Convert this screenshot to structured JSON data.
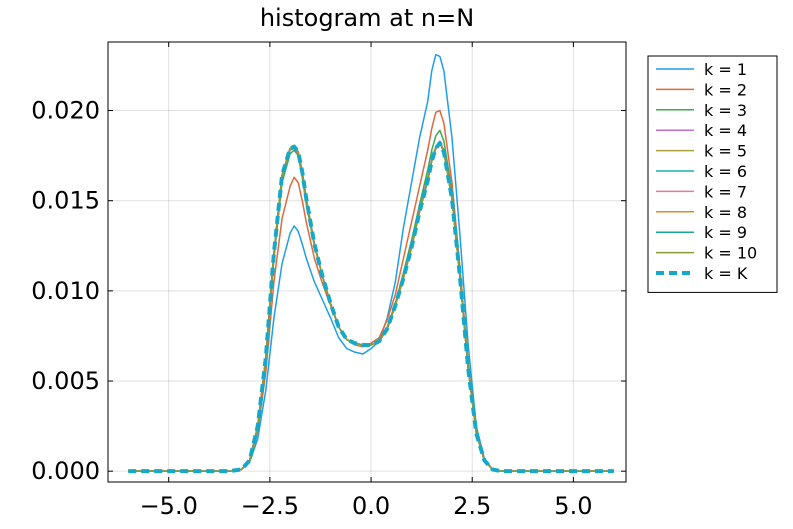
{
  "chart_data": {
    "type": "line",
    "title": "histogram at n=N",
    "xlabel": "",
    "ylabel": "",
    "xlim": [
      -6.5,
      6.3
    ],
    "ylim": [
      -0.0006,
      0.0238
    ],
    "grid": true,
    "legend_position": "outside-right-top",
    "x_ticks": [
      -5.0,
      -2.5,
      0.0,
      2.5,
      5.0
    ],
    "x_tick_labels": [
      "−5.0",
      "−2.5",
      "0.0",
      "2.5",
      "5.0"
    ],
    "y_ticks": [
      0.0,
      0.005,
      0.01,
      0.015,
      0.02
    ],
    "y_tick_labels": [
      "0.000",
      "0.005",
      "0.010",
      "0.015",
      "0.020"
    ],
    "x": [
      -6.0,
      -5.5,
      -5.0,
      -4.5,
      -4.0,
      -3.5,
      -3.2,
      -3.0,
      -2.8,
      -2.6,
      -2.4,
      -2.2,
      -2.0,
      -1.9,
      -1.8,
      -1.7,
      -1.6,
      -1.4,
      -1.2,
      -1.0,
      -0.8,
      -0.6,
      -0.4,
      -0.2,
      0.0,
      0.2,
      0.4,
      0.6,
      0.8,
      1.0,
      1.2,
      1.4,
      1.5,
      1.6,
      1.7,
      1.8,
      2.0,
      2.2,
      2.4,
      2.6,
      2.8,
      3.0,
      3.2,
      3.5,
      4.0,
      4.5,
      5.0,
      5.5,
      6.0
    ],
    "series": [
      {
        "name": "k = 1",
        "color": "#1f9ee8",
        "dash": false,
        "width": 1.5,
        "values": [
          0,
          0,
          0,
          0,
          0,
          0,
          0.0001,
          0.0005,
          0.0018,
          0.0045,
          0.0085,
          0.0115,
          0.0132,
          0.0136,
          0.0133,
          0.0126,
          0.0118,
          0.0105,
          0.0095,
          0.0085,
          0.0074,
          0.0068,
          0.0066,
          0.0065,
          0.0068,
          0.0072,
          0.0085,
          0.0105,
          0.0135,
          0.016,
          0.0185,
          0.0205,
          0.0222,
          0.0231,
          0.023,
          0.0222,
          0.0185,
          0.013,
          0.007,
          0.0025,
          0.0007,
          0.0001,
          0,
          0,
          0,
          0,
          0,
          0,
          0
        ]
      },
      {
        "name": "k = 2",
        "color": "#e0693c",
        "dash": false,
        "width": 1.5,
        "values": [
          0,
          0,
          0,
          0,
          0,
          0,
          0.0001,
          0.0006,
          0.0022,
          0.0055,
          0.0105,
          0.014,
          0.0158,
          0.0163,
          0.016,
          0.015,
          0.0138,
          0.0118,
          0.0104,
          0.0092,
          0.008,
          0.0073,
          0.007,
          0.0069,
          0.0071,
          0.0074,
          0.0084,
          0.0098,
          0.0118,
          0.0138,
          0.0158,
          0.0178,
          0.019,
          0.0199,
          0.02,
          0.0193,
          0.016,
          0.0112,
          0.006,
          0.0022,
          0.0006,
          0.0001,
          0,
          0,
          0,
          0,
          0,
          0,
          0
        ]
      },
      {
        "name": "k = 3",
        "color": "#3ea94e",
        "dash": false,
        "width": 1.5,
        "values": [
          0,
          0,
          0,
          0,
          0,
          0,
          0.0001,
          0.0006,
          0.0025,
          0.0062,
          0.0118,
          0.016,
          0.0176,
          0.0178,
          0.0175,
          0.0163,
          0.0148,
          0.0125,
          0.0108,
          0.0093,
          0.008,
          0.0073,
          0.0071,
          0.007,
          0.007,
          0.0072,
          0.008,
          0.0093,
          0.011,
          0.0128,
          0.0148,
          0.0167,
          0.0178,
          0.0186,
          0.0189,
          0.0183,
          0.0155,
          0.011,
          0.0058,
          0.0021,
          0.0006,
          0.0001,
          0,
          0,
          0,
          0,
          0,
          0,
          0
        ]
      },
      {
        "name": "k = 4",
        "color": "#c06fcb",
        "dash": false,
        "width": 1.5,
        "values": [
          0,
          0,
          0,
          0,
          0,
          0,
          0.0001,
          0.0006,
          0.0025,
          0.0063,
          0.012,
          0.0163,
          0.0178,
          0.0179,
          0.0176,
          0.0165,
          0.015,
          0.0126,
          0.0108,
          0.0093,
          0.008,
          0.0073,
          0.0071,
          0.007,
          0.007,
          0.0072,
          0.0079,
          0.0092,
          0.0108,
          0.0125,
          0.0145,
          0.0163,
          0.0173,
          0.018,
          0.0183,
          0.0178,
          0.0152,
          0.0108,
          0.0057,
          0.0021,
          0.0006,
          0.0001,
          0,
          0,
          0,
          0,
          0,
          0,
          0
        ]
      },
      {
        "name": "k = 5",
        "color": "#a8a034",
        "dash": false,
        "width": 1.5,
        "values": [
          0,
          0,
          0,
          0,
          0,
          0,
          0.0001,
          0.0006,
          0.0025,
          0.0063,
          0.0121,
          0.0164,
          0.0179,
          0.018,
          0.0177,
          0.0166,
          0.0151,
          0.0126,
          0.0108,
          0.0093,
          0.008,
          0.0073,
          0.0071,
          0.007,
          0.007,
          0.0072,
          0.0079,
          0.0092,
          0.0107,
          0.0124,
          0.0144,
          0.0162,
          0.0172,
          0.0179,
          0.0182,
          0.0177,
          0.0151,
          0.0107,
          0.0057,
          0.0021,
          0.0006,
          0.0001,
          0,
          0,
          0,
          0,
          0,
          0,
          0
        ]
      },
      {
        "name": "k = 6",
        "color": "#14b3b8",
        "dash": false,
        "width": 1.5,
        "values": [
          0,
          0,
          0,
          0,
          0,
          0,
          0.0001,
          0.0006,
          0.0025,
          0.0063,
          0.0121,
          0.0164,
          0.0179,
          0.018,
          0.0177,
          0.0166,
          0.0151,
          0.0126,
          0.0108,
          0.0093,
          0.008,
          0.0073,
          0.0071,
          0.007,
          0.007,
          0.0072,
          0.0079,
          0.0092,
          0.0107,
          0.0124,
          0.0144,
          0.0161,
          0.0172,
          0.0179,
          0.0182,
          0.0177,
          0.0151,
          0.0107,
          0.0057,
          0.0021,
          0.0006,
          0.0001,
          0,
          0,
          0,
          0,
          0,
          0,
          0
        ]
      },
      {
        "name": "k = 7",
        "color": "#e8779a",
        "dash": false,
        "width": 1.5,
        "values": [
          0,
          0,
          0,
          0,
          0,
          0,
          0.0001,
          0.0006,
          0.0025,
          0.0063,
          0.0121,
          0.0164,
          0.0179,
          0.018,
          0.0177,
          0.0166,
          0.0151,
          0.0126,
          0.0108,
          0.0093,
          0.008,
          0.0073,
          0.0071,
          0.007,
          0.007,
          0.0072,
          0.0079,
          0.0092,
          0.0107,
          0.0124,
          0.0144,
          0.0161,
          0.0172,
          0.0179,
          0.0182,
          0.0177,
          0.0151,
          0.0107,
          0.0057,
          0.0021,
          0.0006,
          0.0001,
          0,
          0,
          0,
          0,
          0,
          0,
          0
        ]
      },
      {
        "name": "k = 8",
        "color": "#d98c1e",
        "dash": false,
        "width": 1.5,
        "values": [
          0,
          0,
          0,
          0,
          0,
          0,
          0.0001,
          0.0006,
          0.0025,
          0.0063,
          0.0121,
          0.0164,
          0.0179,
          0.018,
          0.0177,
          0.0166,
          0.0151,
          0.0126,
          0.0108,
          0.0093,
          0.008,
          0.0073,
          0.0071,
          0.007,
          0.007,
          0.0072,
          0.0079,
          0.0092,
          0.0107,
          0.0124,
          0.0144,
          0.0161,
          0.0172,
          0.0179,
          0.0182,
          0.0177,
          0.0151,
          0.0107,
          0.0057,
          0.0021,
          0.0006,
          0.0001,
          0,
          0,
          0,
          0,
          0,
          0,
          0
        ]
      },
      {
        "name": "k = 9",
        "color": "#15a894",
        "dash": false,
        "width": 1.5,
        "values": [
          0,
          0,
          0,
          0,
          0,
          0,
          0.0001,
          0.0006,
          0.0025,
          0.0063,
          0.0121,
          0.0164,
          0.0179,
          0.018,
          0.0177,
          0.0166,
          0.0151,
          0.0126,
          0.0108,
          0.0093,
          0.008,
          0.0073,
          0.0071,
          0.007,
          0.007,
          0.0072,
          0.0079,
          0.0092,
          0.0107,
          0.0124,
          0.0144,
          0.0161,
          0.0172,
          0.0179,
          0.0182,
          0.0177,
          0.0151,
          0.0107,
          0.0057,
          0.0021,
          0.0006,
          0.0001,
          0,
          0,
          0,
          0,
          0,
          0,
          0
        ]
      },
      {
        "name": "k = 10",
        "color": "#8e9a36",
        "dash": false,
        "width": 1.5,
        "values": [
          0,
          0,
          0,
          0,
          0,
          0,
          0.0001,
          0.0006,
          0.0025,
          0.0063,
          0.0121,
          0.0164,
          0.0179,
          0.018,
          0.0177,
          0.0166,
          0.0151,
          0.0126,
          0.0108,
          0.0093,
          0.008,
          0.0073,
          0.0071,
          0.007,
          0.007,
          0.0072,
          0.0079,
          0.0092,
          0.0107,
          0.0124,
          0.0144,
          0.0161,
          0.0172,
          0.0179,
          0.0182,
          0.0177,
          0.0151,
          0.0107,
          0.0057,
          0.0021,
          0.0006,
          0.0001,
          0,
          0,
          0,
          0,
          0,
          0,
          0
        ]
      },
      {
        "name": "k = K",
        "color": "#16a8c8",
        "dash": true,
        "width": 4,
        "values": [
          0,
          0,
          0,
          0,
          0,
          0,
          0.0001,
          0.0006,
          0.0025,
          0.0063,
          0.0121,
          0.0164,
          0.0179,
          0.018,
          0.0177,
          0.0166,
          0.0151,
          0.0126,
          0.0108,
          0.0093,
          0.008,
          0.0073,
          0.0071,
          0.007,
          0.007,
          0.0072,
          0.0079,
          0.0092,
          0.0107,
          0.0124,
          0.0144,
          0.0161,
          0.0172,
          0.0179,
          0.0182,
          0.0177,
          0.0151,
          0.0107,
          0.0057,
          0.0021,
          0.0006,
          0.0001,
          0,
          0,
          0,
          0,
          0,
          0,
          0
        ]
      }
    ]
  }
}
